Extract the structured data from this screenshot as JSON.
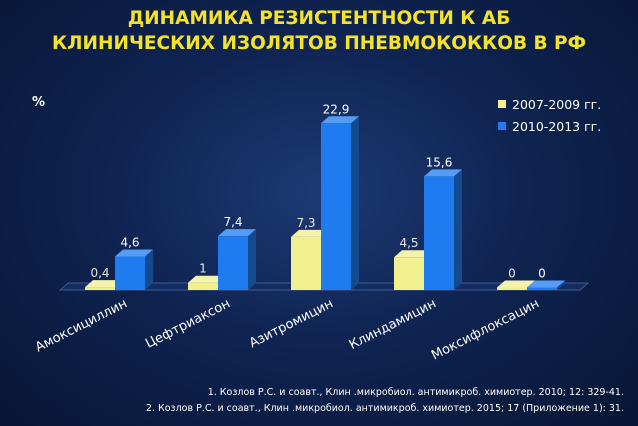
{
  "title": {
    "line1": "ДИНАМИКА РЕЗИСТЕНТНОСТИ К АБ",
    "line2": "КЛИНИЧЕСКИХ ИЗОЛЯТОВ ПНЕВМОКОККОВ В РФ"
  },
  "colors": {
    "title": "#f5e22b",
    "series1": "#f2ef8f",
    "series2": "#1f7bf0"
  },
  "chart_data": {
    "type": "bar",
    "ylabel": "%",
    "categories": [
      "Амоксициллин",
      "Цефтриаксон",
      "Азитромицин",
      "Клиндамицин",
      "Моксифлоксацин"
    ],
    "series": [
      {
        "name": "2007-2009 гг.",
        "values": [
          0.4,
          1,
          7.3,
          4.5,
          0
        ],
        "labels": [
          "0,4",
          "1",
          "7,3",
          "4,5",
          "0"
        ]
      },
      {
        "name": "2010-2013 гг.",
        "values": [
          4.6,
          7.4,
          22.9,
          15.6,
          0
        ],
        "labels": [
          "4,6",
          "7,4",
          "22,9",
          "15,6",
          "0"
        ]
      }
    ],
    "ylim": [
      0,
      25
    ],
    "grid": false,
    "legend_position": "top-right",
    "style": "3d"
  },
  "references": [
    "1. Козлов Р.С. и соавт., Клин .микробиол. антимикроб. химиотер. 2010; 12: 329-41.",
    "2. Козлов Р.С. и соавт., Клин .микробиол. антимикроб. химиотер. 2015; 17 (Приложение  1): 31."
  ]
}
